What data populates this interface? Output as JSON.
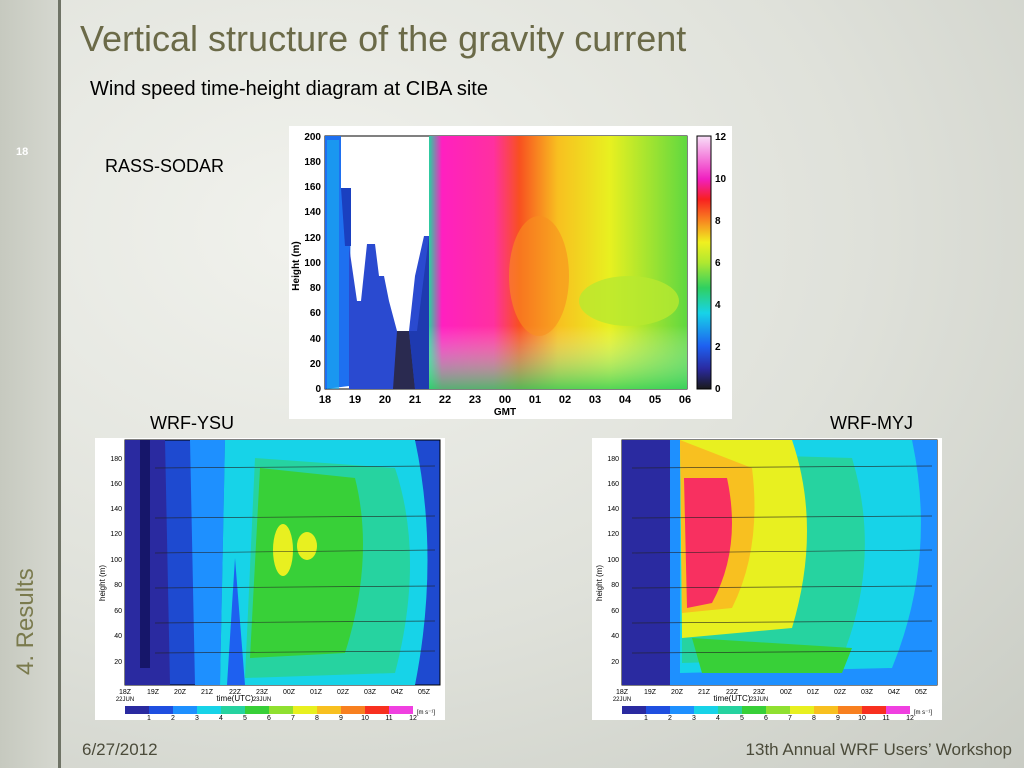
{
  "slide": {
    "number": "18",
    "section": "4. Results",
    "title": "Vertical structure of the gravity current",
    "subtitle": "Wind speed time-height diagram at CIBA site",
    "footer_date": "6/27/2012",
    "footer_event": "13th Annual WRF Users’ Workshop"
  },
  "panels": {
    "rass": {
      "label": "RASS-SODAR",
      "ylabel": "Height (m)",
      "xlabel": "GMT",
      "xticks": [
        "18",
        "19",
        "20",
        "21",
        "22",
        "23",
        "00",
        "01",
        "02",
        "03",
        "04",
        "05",
        "06"
      ],
      "yticks": [
        "0",
        "20",
        "40",
        "60",
        "80",
        "100",
        "120",
        "140",
        "160",
        "180",
        "200"
      ],
      "cbar_ticks": [
        "0",
        "2",
        "4",
        "6",
        "8",
        "10",
        "12"
      ]
    },
    "ysu": {
      "label": "WRF-YSU",
      "ylabel": "height (m)",
      "xlabel": "time(UTC)",
      "xticks": [
        "18Z",
        "19Z",
        "20Z",
        "21Z",
        "22Z",
        "23Z",
        "00Z",
        "01Z",
        "02Z",
        "03Z",
        "04Z",
        "05Z"
      ],
      "date1": "22JUN",
      "date2": "23JUN",
      "yticks": [
        "20",
        "40",
        "60",
        "80",
        "100",
        "120",
        "140",
        "160",
        "180"
      ],
      "cbar_ticks": [
        "1",
        "2",
        "3",
        "4",
        "5",
        "6",
        "7",
        "8",
        "9",
        "10",
        "11",
        "12"
      ],
      "cbar_unit": "[m s⁻¹]"
    },
    "myj": {
      "label": "WRF-MYJ",
      "ylabel": "height (m)",
      "xlabel": "time(UTC)",
      "xticks": [
        "18Z",
        "19Z",
        "20Z",
        "21Z",
        "22Z",
        "23Z",
        "00Z",
        "01Z",
        "02Z",
        "03Z",
        "04Z",
        "05Z"
      ],
      "date1": "22JUN",
      "date2": "23JUN",
      "yticks": [
        "20",
        "40",
        "60",
        "80",
        "100",
        "120",
        "140",
        "160",
        "180"
      ],
      "cbar_ticks": [
        "1",
        "2",
        "3",
        "4",
        "5",
        "6",
        "7",
        "8",
        "9",
        "10",
        "11",
        "12"
      ],
      "cbar_unit": "[m s⁻¹]"
    }
  },
  "colors": {
    "scale": [
      "#1a1a1a",
      "#2a2aa0",
      "#1f4fe0",
      "#1e90ff",
      "#17d3e8",
      "#26d3a0",
      "#38d038",
      "#90e030",
      "#e8f020",
      "#f8c020",
      "#f88020",
      "#f83020",
      "#e8208a",
      "#f040e0",
      "#f8c0f8"
    ]
  }
}
